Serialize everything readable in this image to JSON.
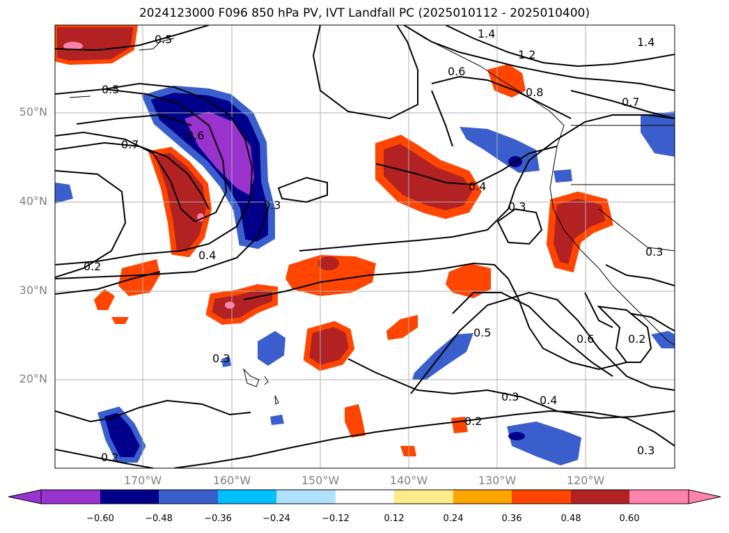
{
  "title": "2024123000 F096 850 hPa PV, IVT Landfall PC (2025010112 - 2025010400)",
  "lat_labels": [
    "50°N",
    "40°N",
    "30°N",
    "20°N"
  ],
  "lon_labels": [
    "170°W",
    "160°W",
    "150°W",
    "140°W",
    "130°W",
    "120°W"
  ],
  "contour_labels": [
    "0.5",
    "0.5",
    "0.6",
    "0.7",
    "0.3",
    "0.4",
    "0.2",
    "0.3",
    "0.2",
    "1.4",
    "1.2",
    "1.4",
    "0.6",
    "0.8",
    "0.7",
    "0.4",
    "0.3",
    "0.3",
    "0.5",
    "0.6",
    "0.2",
    "0.3",
    "0.4",
    "0.2",
    "0.3"
  ],
  "colorbar": {
    "ticks": [
      "−0.60",
      "−0.48",
      "−0.36",
      "−0.24",
      "−0.12",
      "0.12",
      "0.24",
      "0.36",
      "0.48",
      "0.60"
    ],
    "colors": [
      "#9a32cd",
      "#00008b",
      "#3a5fcd",
      "#00bfff",
      "#b0e2ff",
      "#ffffff",
      "#ffec8b",
      "#ffa500",
      "#ff4500",
      "#b22222",
      "#ff82ab"
    ]
  }
}
